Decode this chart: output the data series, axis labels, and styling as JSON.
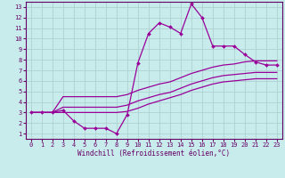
{
  "xlabel": "Windchill (Refroidissement éolien,°C)",
  "bg_color": "#c8ecec",
  "line_color": "#990099",
  "grid_color": "#aacccc",
  "xlim": [
    -0.5,
    23.5
  ],
  "ylim": [
    0.5,
    13.5
  ],
  "xticks": [
    0,
    1,
    2,
    3,
    4,
    5,
    6,
    7,
    8,
    9,
    10,
    11,
    12,
    13,
    14,
    15,
    16,
    17,
    18,
    19,
    20,
    21,
    22,
    23
  ],
  "yticks": [
    1,
    2,
    3,
    4,
    5,
    6,
    7,
    8,
    9,
    10,
    11,
    12,
    13
  ],
  "series": [
    {
      "x": [
        0,
        1,
        2,
        3,
        4,
        5,
        6,
        7,
        8,
        9,
        10,
        11,
        12,
        13,
        14,
        15,
        16,
        17,
        18,
        19,
        20,
        21,
        22,
        23
      ],
      "y": [
        3,
        3,
        3,
        3.2,
        2.2,
        1.5,
        1.5,
        1.5,
        1.0,
        2.8,
        7.7,
        10.5,
        11.5,
        11.1,
        10.5,
        13.3,
        12.0,
        9.3,
        9.3,
        9.3,
        8.5,
        7.8,
        7.5,
        7.5
      ],
      "marker": "D",
      "markersize": 2.0,
      "linewidth": 0.9,
      "with_markers": true
    },
    {
      "x": [
        0,
        1,
        2,
        3,
        4,
        5,
        6,
        7,
        8,
        9,
        10,
        11,
        12,
        13,
        14,
        15,
        16,
        17,
        18,
        19,
        20,
        21,
        22,
        23
      ],
      "y": [
        3.0,
        3.0,
        3.0,
        4.5,
        4.5,
        4.5,
        4.5,
        4.5,
        4.5,
        4.7,
        5.1,
        5.4,
        5.7,
        5.9,
        6.3,
        6.7,
        7.0,
        7.3,
        7.5,
        7.6,
        7.8,
        7.9,
        7.9,
        7.9
      ],
      "marker": null,
      "markersize": 0,
      "linewidth": 0.9,
      "with_markers": false
    },
    {
      "x": [
        0,
        1,
        2,
        3,
        4,
        5,
        6,
        7,
        8,
        9,
        10,
        11,
        12,
        13,
        14,
        15,
        16,
        17,
        18,
        19,
        20,
        21,
        22,
        23
      ],
      "y": [
        3.0,
        3.0,
        3.0,
        3.5,
        3.5,
        3.5,
        3.5,
        3.5,
        3.5,
        3.7,
        4.1,
        4.4,
        4.7,
        4.9,
        5.3,
        5.7,
        6.0,
        6.3,
        6.5,
        6.6,
        6.7,
        6.8,
        6.8,
        6.8
      ],
      "marker": null,
      "markersize": 0,
      "linewidth": 0.9,
      "with_markers": false
    },
    {
      "x": [
        0,
        1,
        2,
        3,
        4,
        5,
        6,
        7,
        8,
        9,
        10,
        11,
        12,
        13,
        14,
        15,
        16,
        17,
        18,
        19,
        20,
        21,
        22,
        23
      ],
      "y": [
        3.0,
        3.0,
        3.0,
        3.0,
        3.0,
        3.0,
        3.0,
        3.0,
        3.0,
        3.1,
        3.4,
        3.8,
        4.1,
        4.4,
        4.7,
        5.1,
        5.4,
        5.7,
        5.9,
        6.0,
        6.1,
        6.2,
        6.2,
        6.2
      ],
      "marker": null,
      "markersize": 0,
      "linewidth": 0.9,
      "with_markers": false
    }
  ]
}
